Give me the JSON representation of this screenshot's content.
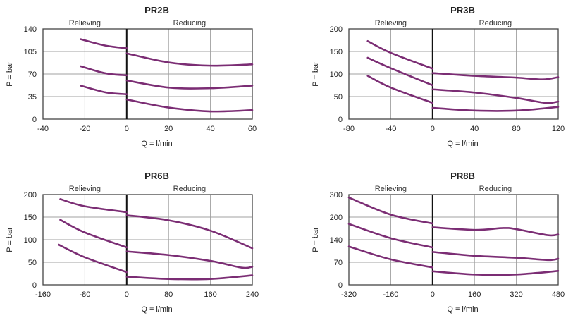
{
  "line_color": "#7b2d74",
  "chart_data": [
    {
      "type": "line",
      "title": "PR2B",
      "region_labels": [
        "Relieving",
        "Reducing"
      ],
      "xlabel": "Q = l/min",
      "ylabel": "P = bar",
      "xlim": [
        -40,
        60
      ],
      "xticks": [
        -40,
        -20,
        0,
        20,
        40,
        60
      ],
      "yticks": [
        0,
        35,
        70,
        105,
        140
      ],
      "grid": true,
      "series": [
        {
          "x": [
            -22,
            -10,
            0
          ],
          "y": [
            124,
            114,
            110
          ]
        },
        {
          "x": [
            0,
            20,
            40,
            60
          ],
          "y": [
            102,
            88,
            83,
            85
          ]
        },
        {
          "x": [
            -22,
            -10,
            0
          ],
          "y": [
            82,
            71,
            68
          ]
        },
        {
          "x": [
            0,
            20,
            40,
            60
          ],
          "y": [
            60,
            49,
            48,
            52
          ]
        },
        {
          "x": [
            -22,
            -10,
            0
          ],
          "y": [
            52,
            41.5,
            38.6
          ]
        },
        {
          "x": [
            0,
            20,
            40,
            60
          ],
          "y": [
            30.5,
            18,
            12,
            14
          ]
        }
      ]
    },
    {
      "type": "line",
      "title": "PR3B",
      "region_labels": [
        "Relieving",
        "Reducing"
      ],
      "xlabel": "Q = l/min",
      "ylabel": "P = bar",
      "xlim": [
        -80,
        120
      ],
      "xticks": [
        -80,
        -40,
        0,
        40,
        80,
        120
      ],
      "yticks": [
        0,
        50,
        100,
        150,
        200
      ],
      "grid": true,
      "series": [
        {
          "x": [
            -62,
            -40,
            0
          ],
          "y": [
            173,
            147,
            112
          ]
        },
        {
          "x": [
            0,
            40,
            80,
            105,
            120
          ],
          "y": [
            102,
            96,
            92,
            88,
            93
          ]
        },
        {
          "x": [
            -62,
            -40,
            0
          ],
          "y": [
            136,
            113,
            75
          ]
        },
        {
          "x": [
            0,
            40,
            80,
            108,
            120
          ],
          "y": [
            66,
            59,
            47,
            36,
            39
          ]
        },
        {
          "x": [
            -62,
            -40,
            0
          ],
          "y": [
            96,
            70,
            36
          ]
        },
        {
          "x": [
            0,
            40,
            80,
            120
          ],
          "y": [
            25,
            19,
            19,
            27
          ]
        }
      ]
    },
    {
      "type": "line",
      "title": "PR6B",
      "region_labels": [
        "Relieving",
        "Reducing"
      ],
      "xlabel": "Q = l/min",
      "ylabel": "P = bar",
      "xlim": [
        -160,
        240
      ],
      "xticks": [
        -160,
        -80,
        0,
        80,
        160,
        240
      ],
      "yticks": [
        0,
        50,
        100,
        150,
        200
      ],
      "grid": true,
      "series": [
        {
          "x": [
            -127,
            -80,
            0
          ],
          "y": [
            190,
            174,
            161
          ]
        },
        {
          "x": [
            0,
            80,
            160,
            240
          ],
          "y": [
            154,
            143,
            120,
            81
          ]
        },
        {
          "x": [
            -127,
            -80,
            0
          ],
          "y": [
            144,
            116,
            83
          ]
        },
        {
          "x": [
            0,
            80,
            160,
            220,
            240
          ],
          "y": [
            74,
            66,
            53,
            38,
            40
          ]
        },
        {
          "x": [
            -130,
            -80,
            0
          ],
          "y": [
            89,
            61,
            28
          ]
        },
        {
          "x": [
            0,
            80,
            160,
            240
          ],
          "y": [
            18,
            13,
            13,
            21
          ]
        }
      ]
    },
    {
      "type": "line",
      "title": "PR8B",
      "region_labels": [
        "Relieving",
        "Reducing"
      ],
      "xlabel": "Q = l/min",
      "ylabel": "P = bar",
      "xlim": [
        -320,
        480
      ],
      "xticks": [
        -320,
        -160,
        0,
        160,
        320,
        480
      ],
      "yticks": [
        0,
        70,
        140,
        200,
        300
      ],
      "grid": true,
      "series": [
        {
          "x": [
            -320,
            -160,
            0
          ],
          "y": [
            287,
            211,
            183
          ]
        },
        {
          "x": [
            0,
            160,
            270,
            320,
            440,
            480
          ],
          "y": [
            173,
            166,
            171,
            168,
            152,
            154
          ]
        },
        {
          "x": [
            -320,
            -160,
            0
          ],
          "y": [
            182,
            144,
            116
          ]
        },
        {
          "x": [
            0,
            160,
            320,
            440,
            480
          ],
          "y": [
            102,
            90,
            84,
            77,
            81
          ]
        },
        {
          "x": [
            -320,
            -160,
            0
          ],
          "y": [
            119,
            79,
            54
          ]
        },
        {
          "x": [
            0,
            160,
            320,
            480
          ],
          "y": [
            42,
            32,
            32,
            43
          ]
        }
      ]
    }
  ]
}
